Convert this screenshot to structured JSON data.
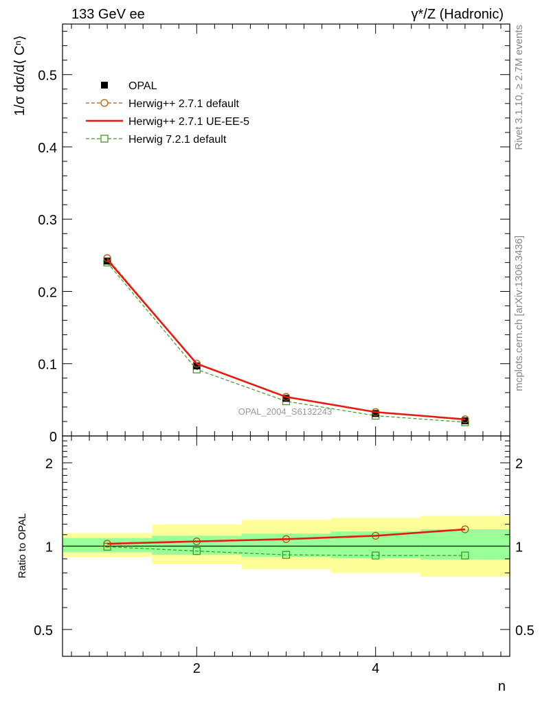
{
  "header": {
    "left": "133 GeV ee",
    "right": "γ*/Z (Hadronic)"
  },
  "side_labels": {
    "rivet": "Rivet 3.1.10, ≥ 2.7M events",
    "mcplots": "mcplots.cern.ch [arXiv:1306.3436]"
  },
  "watermark": "OPAL_2004_S6132243",
  "legend": [
    {
      "label": "OPAL",
      "style": "data",
      "color": "#000000"
    },
    {
      "label": "Herwig++ 2.7.1 default",
      "style": "dashed-circle",
      "color": "#b05a00"
    },
    {
      "label": "Herwig++ 2.7.1 UE-EE-5",
      "style": "solid",
      "color": "#e8190f"
    },
    {
      "label": "Herwig 7.2.1 default",
      "style": "dashed-square",
      "color": "#3d9a1e"
    }
  ],
  "chart_data": [
    {
      "type": "line",
      "panel": "main",
      "ylabel": "1/σ dσ/d⟨ Cⁿ⟩",
      "xlim": [
        0.5,
        5.5
      ],
      "ylim": [
        0,
        0.57
      ],
      "yticks": [
        0,
        0.1,
        0.2,
        0.3,
        0.4,
        0.5
      ],
      "ytick_labels": [
        "0",
        "0.1",
        "0.2",
        "0.3",
        "0.4",
        "0.5"
      ],
      "x": [
        1,
        2,
        3,
        4,
        5
      ],
      "series": [
        {
          "name": "OPAL",
          "values": [
            0.242,
            0.097,
            0.052,
            0.031,
            0.021
          ]
        },
        {
          "name": "Herwig++ 2.7.1 default",
          "values": [
            0.246,
            0.1,
            0.054,
            0.033,
            0.023
          ]
        },
        {
          "name": "Herwig++ 2.7.1 UE-EE-5",
          "values": [
            0.244,
            0.1,
            0.054,
            0.033,
            0.023
          ]
        },
        {
          "name": "Herwig 7.2.1 default",
          "values": [
            0.24,
            0.092,
            0.048,
            0.028,
            0.019
          ]
        }
      ]
    },
    {
      "type": "line",
      "panel": "ratio",
      "ylabel": "Ratio to OPAL",
      "xlabel": "n",
      "scale": "log",
      "xlim": [
        0.5,
        5.5
      ],
      "ylim": [
        0.4,
        2.5
      ],
      "xticks": [
        2,
        4
      ],
      "xtick_labels": [
        "2",
        "4"
      ],
      "yticks": [
        0.5,
        1,
        2
      ],
      "ytick_labels": [
        "0.5",
        "1",
        "2"
      ],
      "bins": [
        [
          0.5,
          1.5
        ],
        [
          1.5,
          2.5
        ],
        [
          2.5,
          3.5
        ],
        [
          3.5,
          4.5
        ],
        [
          4.5,
          5.5
        ]
      ],
      "stat_band": [
        [
          0.95,
          1.07
        ],
        [
          0.93,
          1.09
        ],
        [
          0.915,
          1.11
        ],
        [
          0.905,
          1.13
        ],
        [
          0.895,
          1.15
        ]
      ],
      "total_band": [
        [
          0.915,
          1.115
        ],
        [
          0.86,
          1.2
        ],
        [
          0.825,
          1.245
        ],
        [
          0.8,
          1.265
        ],
        [
          0.775,
          1.285
        ]
      ],
      "x": [
        1,
        2,
        3,
        4,
        5
      ],
      "series": [
        {
          "name": "Herwig++ 2.7.1 default",
          "values": [
            1.02,
            1.04,
            1.06,
            1.09,
            1.15
          ]
        },
        {
          "name": "Herwig++ 2.7.1 UE-EE-5",
          "values": [
            1.02,
            1.04,
            1.06,
            1.09,
            1.15
          ]
        },
        {
          "name": "Herwig 7.2.1 default",
          "values": [
            0.995,
            0.96,
            0.93,
            0.925,
            0.925
          ]
        }
      ]
    }
  ]
}
